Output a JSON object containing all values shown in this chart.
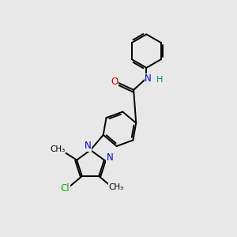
{
  "background_color": "#e8e8e8",
  "bond_color": "#000000",
  "bond_width": 1.4,
  "atom_colors": {
    "N": "#0000cc",
    "O": "#cc0000",
    "Cl": "#00aa00",
    "H": "#008888"
  },
  "font_size": 8.5
}
